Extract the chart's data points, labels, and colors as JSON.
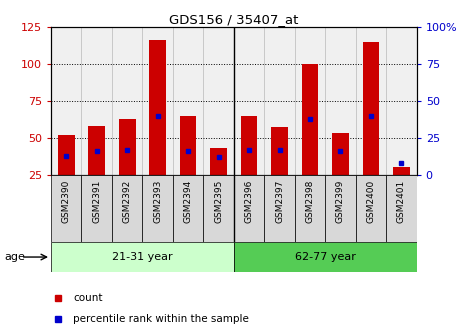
{
  "title": "GDS156 / 35407_at",
  "samples": [
    "GSM2390",
    "GSM2391",
    "GSM2392",
    "GSM2393",
    "GSM2394",
    "GSM2395",
    "GSM2396",
    "GSM2397",
    "GSM2398",
    "GSM2399",
    "GSM2400",
    "GSM2401"
  ],
  "counts": [
    52,
    58,
    63,
    116,
    65,
    43,
    65,
    57,
    100,
    53,
    115,
    30
  ],
  "pct_values": [
    13,
    16,
    17,
    40,
    16,
    12,
    17,
    17,
    38,
    16,
    40,
    8
  ],
  "groups": [
    {
      "label": "21-31 year",
      "start": 0,
      "end": 6,
      "color": "#ccffcc"
    },
    {
      "label": "62-77 year",
      "start": 6,
      "end": 12,
      "color": "#55cc55"
    }
  ],
  "ylim_left": [
    25,
    125
  ],
  "ylim_right": [
    0,
    100
  ],
  "bar_color": "#cc0000",
  "percentile_color": "#0000cc",
  "bg_color": "#ffffff",
  "tick_color_left": "#cc0000",
  "tick_color_right": "#0000cc",
  "cell_bg": "#dddddd",
  "grid_yticks": [
    50,
    75,
    100
  ],
  "left_yticks": [
    25,
    50,
    75,
    100,
    125
  ],
  "right_yticks": [
    0,
    25,
    50,
    75,
    100
  ],
  "right_yticklabels": [
    "0",
    "25",
    "50",
    "75",
    "100%"
  ],
  "bar_width": 0.55,
  "legend_items": [
    {
      "label": "count",
      "color": "#cc0000"
    },
    {
      "label": "percentile rank within the sample",
      "color": "#0000cc"
    }
  ]
}
